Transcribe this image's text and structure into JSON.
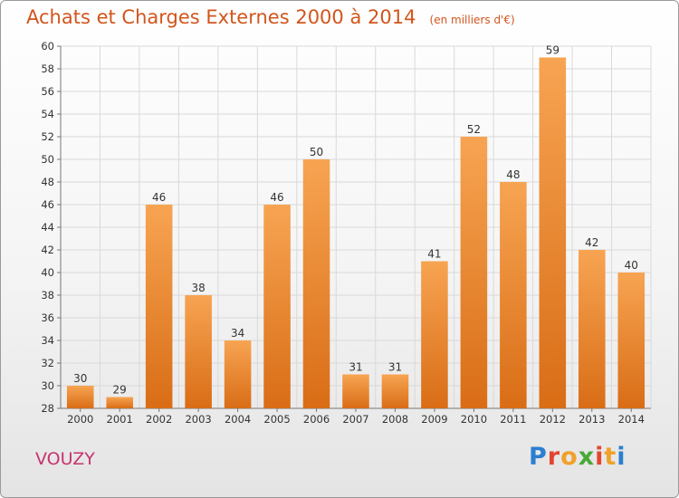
{
  "chart_data": {
    "type": "bar",
    "title": "Achats et Charges Externes 2000 à 2014",
    "subtitle": "(en milliers d'€)",
    "categories": [
      "2000",
      "2001",
      "2002",
      "2003",
      "2004",
      "2005",
      "2006",
      "2007",
      "2008",
      "2009",
      "2010",
      "2011",
      "2012",
      "2013",
      "2014"
    ],
    "values": [
      30,
      29,
      46,
      38,
      34,
      46,
      50,
      31,
      31,
      41,
      52,
      48,
      59,
      42,
      40
    ],
    "ylim": [
      28,
      60
    ],
    "yticks": [
      28,
      30,
      32,
      34,
      36,
      38,
      40,
      42,
      44,
      46,
      48,
      50,
      52,
      54,
      56,
      58,
      60
    ],
    "grid": true,
    "bar_color_top": "#f7a452",
    "bar_color_bottom": "#d96d16"
  },
  "footer": {
    "town": "VOUZY",
    "brand_letters": [
      "P",
      "r",
      "o",
      "x",
      "i",
      "t",
      "i"
    ],
    "brand_colors": [
      "#2b7fd0",
      "#e2452f",
      "#f0a12a",
      "#4aa838",
      "#e2452f",
      "#f0a12a",
      "#2b7fd0"
    ]
  },
  "colors": {
    "title": "#d2551c",
    "town": "#c7336e",
    "grid": "#d9d9d9"
  }
}
